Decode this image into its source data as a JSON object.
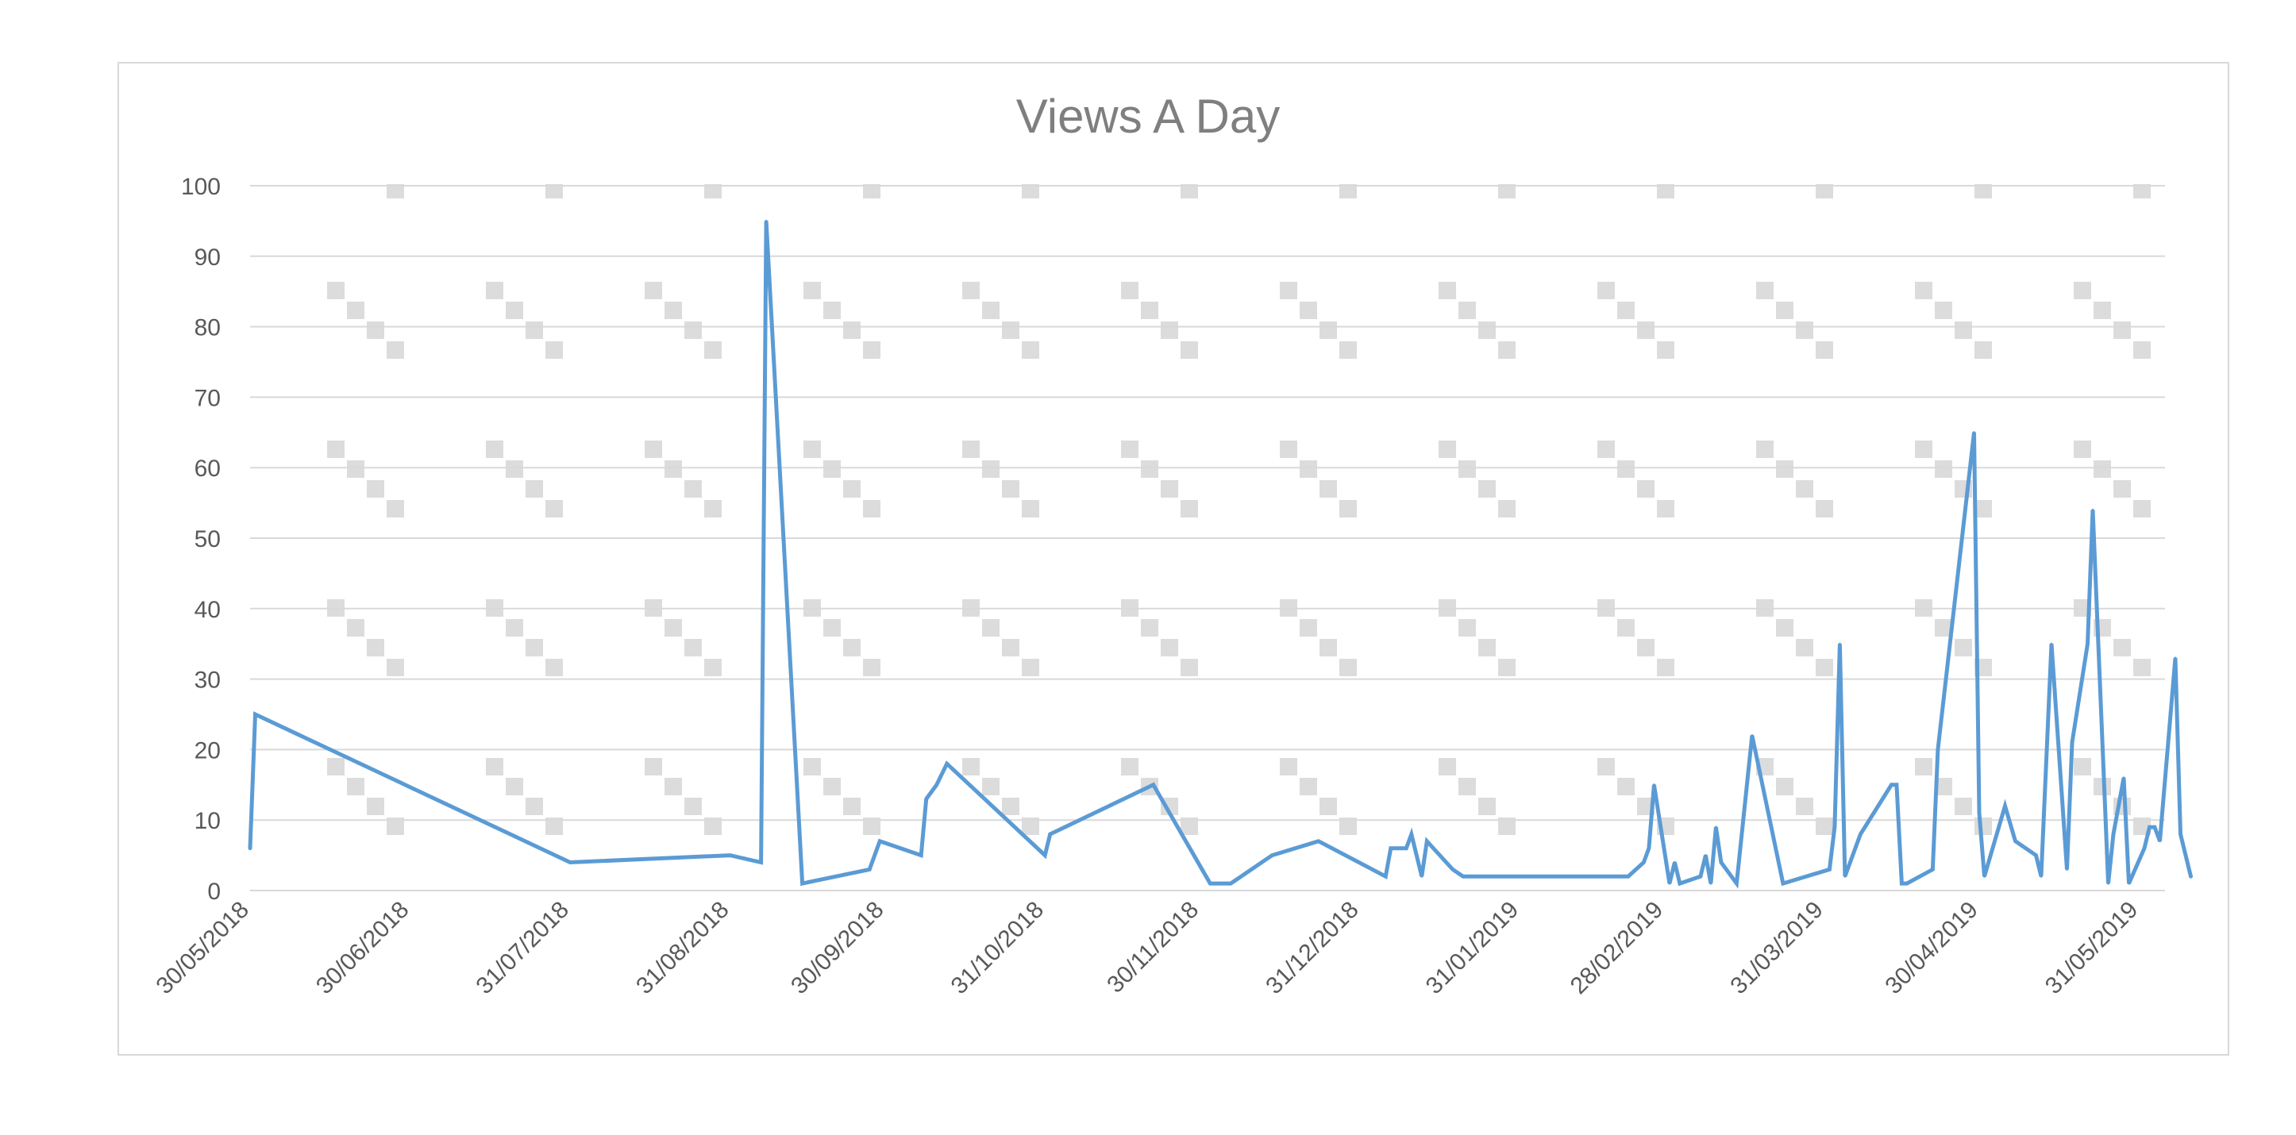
{
  "chart_data": {
    "type": "line",
    "title": "Views A Day",
    "xlabel": "",
    "ylabel": "",
    "ylim": [
      0,
      100
    ],
    "y_ticks": [
      0,
      10,
      20,
      30,
      40,
      50,
      60,
      70,
      80,
      90,
      100
    ],
    "x_range": [
      "2018-05-30",
      "2019-06-05"
    ],
    "x_tick_dates": [
      "2018-05-30",
      "2018-06-30",
      "2018-07-31",
      "2018-08-31",
      "2018-09-30",
      "2018-10-31",
      "2018-11-30",
      "2018-12-31",
      "2019-01-31",
      "2019-02-28",
      "2019-03-31",
      "2019-04-30",
      "2019-05-31"
    ],
    "x_tick_labels": [
      "30/05/2018",
      "30/06/2018",
      "31/07/2018",
      "31/08/2018",
      "30/09/2018",
      "31/10/2018",
      "30/11/2018",
      "31/12/2018",
      "31/01/2019",
      "28/02/2019",
      "31/03/2019",
      "30/04/2019",
      "31/05/2019"
    ],
    "grid": true,
    "legend": "none",
    "series": [
      {
        "color": "#5b9bd5",
        "points": [
          [
            "2018-05-30",
            6
          ],
          [
            "2018-05-31",
            25
          ],
          [
            "2018-07-31",
            4
          ],
          [
            "2018-08-31",
            5
          ],
          [
            "2018-09-06",
            4
          ],
          [
            "2018-09-07",
            95
          ],
          [
            "2018-09-14",
            1
          ],
          [
            "2018-09-27",
            3
          ],
          [
            "2018-09-29",
            7
          ],
          [
            "2018-10-07",
            5
          ],
          [
            "2018-10-08",
            13
          ],
          [
            "2018-10-10",
            15
          ],
          [
            "2018-10-12",
            18
          ],
          [
            "2018-10-31",
            5
          ],
          [
            "2018-11-01",
            8
          ],
          [
            "2018-11-21",
            15
          ],
          [
            "2018-12-02",
            1
          ],
          [
            "2018-12-06",
            1
          ],
          [
            "2018-12-14",
            5
          ],
          [
            "2018-12-23",
            7
          ],
          [
            "2019-01-05",
            2
          ],
          [
            "2019-01-06",
            6
          ],
          [
            "2019-01-09",
            6
          ],
          [
            "2019-01-10",
            8
          ],
          [
            "2019-01-12",
            2
          ],
          [
            "2019-01-13",
            7
          ],
          [
            "2019-01-18",
            3
          ],
          [
            "2019-01-20",
            2
          ],
          [
            "2019-02-21",
            2
          ],
          [
            "2019-02-24",
            4
          ],
          [
            "2019-02-25",
            6
          ],
          [
            "2019-02-26",
            15
          ],
          [
            "2019-03-01",
            1
          ],
          [
            "2019-03-02",
            4
          ],
          [
            "2019-03-03",
            1
          ],
          [
            "2019-03-07",
            2
          ],
          [
            "2019-03-08",
            5
          ],
          [
            "2019-03-09",
            1
          ],
          [
            "2019-03-10",
            9
          ],
          [
            "2019-03-11",
            4
          ],
          [
            "2019-03-14",
            1
          ],
          [
            "2019-03-17",
            22
          ],
          [
            "2019-03-23",
            1
          ],
          [
            "2019-04-01",
            3
          ],
          [
            "2019-04-02",
            9
          ],
          [
            "2019-04-03",
            35
          ],
          [
            "2019-04-04",
            2
          ],
          [
            "2019-04-07",
            8
          ],
          [
            "2019-04-13",
            15
          ],
          [
            "2019-04-14",
            15
          ],
          [
            "2019-04-15",
            1
          ],
          [
            "2019-04-16",
            1
          ],
          [
            "2019-04-21",
            3
          ],
          [
            "2019-04-22",
            20
          ],
          [
            "2019-04-29",
            65
          ],
          [
            "2019-04-30",
            11
          ],
          [
            "2019-05-01",
            2
          ],
          [
            "2019-05-05",
            12
          ],
          [
            "2019-05-07",
            7
          ],
          [
            "2019-05-11",
            5
          ],
          [
            "2019-05-12",
            2
          ],
          [
            "2019-05-14",
            35
          ],
          [
            "2019-05-17",
            3
          ],
          [
            "2019-05-18",
            21
          ],
          [
            "2019-05-21",
            35
          ],
          [
            "2019-05-22",
            54
          ],
          [
            "2019-05-25",
            1
          ],
          [
            "2019-05-26",
            8
          ],
          [
            "2019-05-28",
            16
          ],
          [
            "2019-05-29",
            1
          ],
          [
            "2019-06-01",
            6
          ],
          [
            "2019-06-02",
            9
          ],
          [
            "2019-06-03",
            9
          ],
          [
            "2019-06-04",
            7
          ],
          [
            "2019-06-07",
            33
          ],
          [
            "2019-06-08",
            8
          ],
          [
            "2019-06-10",
            2
          ]
        ]
      }
    ]
  }
}
